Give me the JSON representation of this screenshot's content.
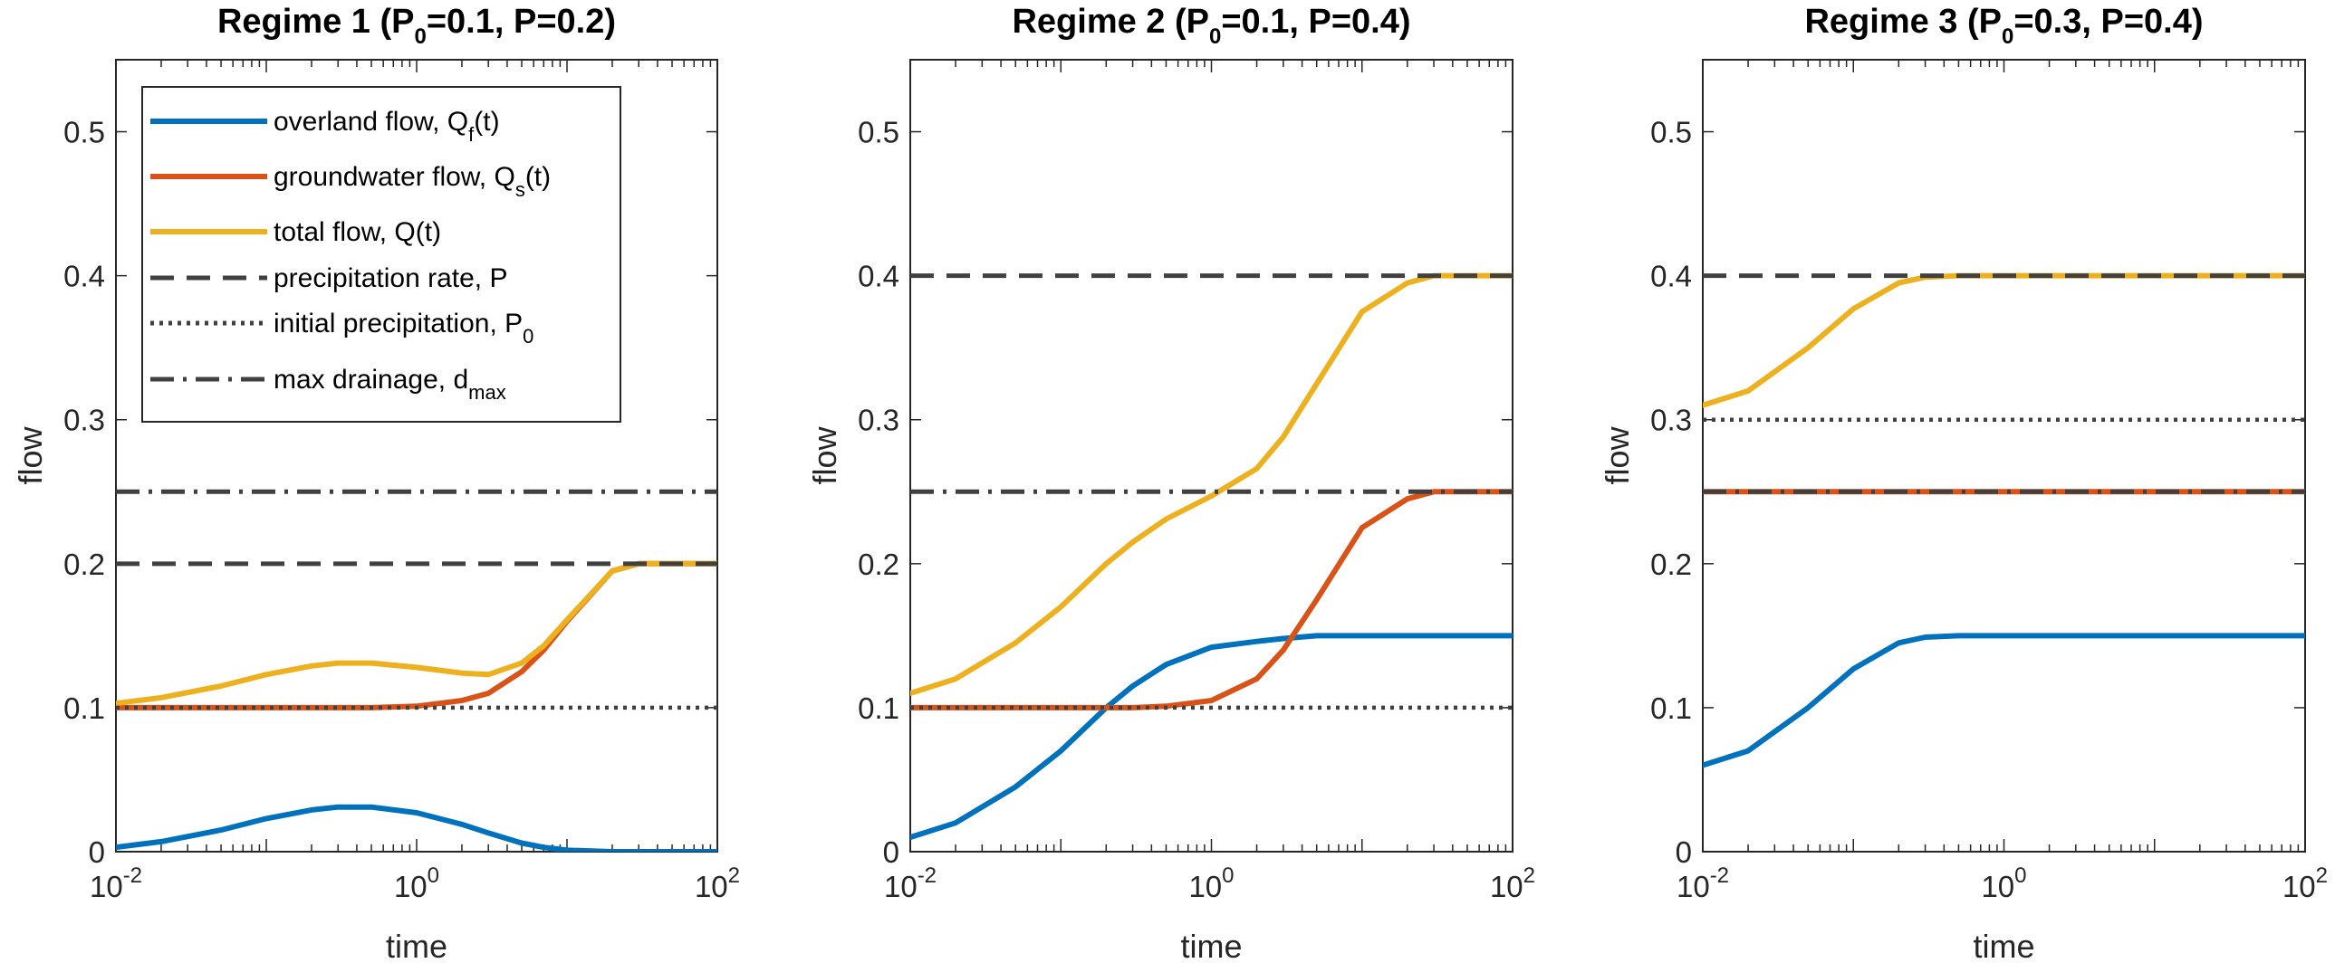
{
  "chart_data": [
    {
      "type": "line",
      "title": "Regime 1 (P",
      "title_sub": "0",
      "title_rest": "=0.1, P=0.2)",
      "xlabel": "time",
      "ylabel": "flow",
      "xscale": "log",
      "xlim": [
        0.01,
        100
      ],
      "ylim": [
        0,
        0.55
      ],
      "xticks": [
        {
          "base": "10",
          "exp": "-2"
        },
        {
          "base": "10",
          "exp": "0"
        },
        {
          "base": "10",
          "exp": "2"
        }
      ],
      "yticks": [
        "0",
        "0.1",
        "0.2",
        "0.3",
        "0.4",
        "0.5"
      ],
      "grid": false,
      "legend": "top-left",
      "reference_lines": {
        "precipitation": 0.2,
        "initial_precipitation": 0.1,
        "max_drainage": 0.25
      },
      "x": [
        0.01,
        0.02,
        0.05,
        0.1,
        0.2,
        0.3,
        0.5,
        1,
        2,
        3,
        5,
        7,
        10,
        20,
        30,
        50,
        100
      ],
      "series": [
        {
          "key": "overland",
          "values": [
            0.003,
            0.007,
            0.015,
            0.023,
            0.029,
            0.031,
            0.031,
            0.027,
            0.019,
            0.013,
            0.006,
            0.003,
            0.001,
            0,
            0,
            0,
            0
          ]
        },
        {
          "key": "groundwater",
          "values": [
            0.1,
            0.1,
            0.1,
            0.1,
            0.1,
            0.1,
            0.1,
            0.101,
            0.105,
            0.11,
            0.125,
            0.14,
            0.16,
            0.195,
            0.2,
            0.2,
            0.2
          ]
        },
        {
          "key": "total",
          "values": [
            0.103,
            0.107,
            0.115,
            0.123,
            0.129,
            0.131,
            0.131,
            0.128,
            0.124,
            0.123,
            0.131,
            0.143,
            0.161,
            0.195,
            0.2,
            0.2,
            0.2
          ]
        }
      ]
    },
    {
      "type": "line",
      "title": "Regime 2 (P",
      "title_sub": "0",
      "title_rest": "=0.1, P=0.4)",
      "xlabel": "time",
      "ylabel": "flow",
      "xscale": "log",
      "xlim": [
        0.01,
        100
      ],
      "ylim": [
        0,
        0.55
      ],
      "xticks": [
        {
          "base": "10",
          "exp": "-2"
        },
        {
          "base": "10",
          "exp": "0"
        },
        {
          "base": "10",
          "exp": "2"
        }
      ],
      "yticks": [
        "0",
        "0.1",
        "0.2",
        "0.3",
        "0.4",
        "0.5"
      ],
      "grid": false,
      "reference_lines": {
        "precipitation": 0.4,
        "initial_precipitation": 0.1,
        "max_drainage": 0.25
      },
      "x": [
        0.01,
        0.02,
        0.05,
        0.1,
        0.2,
        0.3,
        0.5,
        1,
        2,
        3,
        5,
        10,
        20,
        30,
        50,
        100
      ],
      "series": [
        {
          "key": "overland",
          "values": [
            0.01,
            0.02,
            0.045,
            0.07,
            0.1,
            0.115,
            0.13,
            0.142,
            0.146,
            0.148,
            0.15,
            0.15,
            0.15,
            0.15,
            0.15,
            0.15
          ]
        },
        {
          "key": "groundwater",
          "values": [
            0.1,
            0.1,
            0.1,
            0.1,
            0.1,
            0.1,
            0.101,
            0.105,
            0.12,
            0.14,
            0.175,
            0.225,
            0.245,
            0.25,
            0.25,
            0.25
          ]
        },
        {
          "key": "total",
          "values": [
            0.11,
            0.12,
            0.145,
            0.17,
            0.2,
            0.215,
            0.231,
            0.247,
            0.266,
            0.288,
            0.325,
            0.375,
            0.395,
            0.4,
            0.4,
            0.4
          ]
        }
      ]
    },
    {
      "type": "line",
      "title": "Regime 3 (P",
      "title_sub": "0",
      "title_rest": "=0.3, P=0.4)",
      "xlabel": "time",
      "ylabel": "flow",
      "xscale": "log",
      "xlim": [
        0.01,
        100
      ],
      "ylim": [
        0,
        0.55
      ],
      "xticks": [
        {
          "base": "10",
          "exp": "-2"
        },
        {
          "base": "10",
          "exp": "0"
        },
        {
          "base": "10",
          "exp": "2"
        }
      ],
      "yticks": [
        "0",
        "0.1",
        "0.2",
        "0.3",
        "0.4",
        "0.5"
      ],
      "grid": false,
      "reference_lines": {
        "precipitation": 0.4,
        "initial_precipitation": 0.3,
        "max_drainage": 0.25
      },
      "x": [
        0.01,
        0.02,
        0.05,
        0.1,
        0.2,
        0.3,
        0.5,
        1,
        2,
        5,
        10,
        100
      ],
      "series": [
        {
          "key": "overland",
          "values": [
            0.06,
            0.07,
            0.1,
            0.127,
            0.145,
            0.149,
            0.15,
            0.15,
            0.15,
            0.15,
            0.15,
            0.15
          ]
        },
        {
          "key": "groundwater",
          "values": [
            0.25,
            0.25,
            0.25,
            0.25,
            0.25,
            0.25,
            0.25,
            0.25,
            0.25,
            0.25,
            0.25,
            0.25
          ]
        },
        {
          "key": "total",
          "values": [
            0.31,
            0.32,
            0.35,
            0.377,
            0.395,
            0.399,
            0.4,
            0.4,
            0.4,
            0.4,
            0.4,
            0.4
          ]
        }
      ]
    }
  ],
  "legend": {
    "items": [
      {
        "key": "overland",
        "label": "overland flow, Q",
        "sub": "f",
        "tail": "(t)",
        "style": "solid",
        "color": "#0072BD"
      },
      {
        "key": "groundwater",
        "label": "groundwater flow, Q",
        "sub": "s",
        "tail": "(t)",
        "style": "solid",
        "color": "#D95319"
      },
      {
        "key": "total",
        "label": "total flow, Q(t)",
        "sub": "",
        "tail": "",
        "style": "solid",
        "color": "#EDB120"
      },
      {
        "key": "precipitation",
        "label": "precipitation rate, P",
        "sub": "",
        "tail": "",
        "style": "dashed",
        "color": "#404040"
      },
      {
        "key": "initial_precipitation",
        "label": "initial precipitation, P",
        "sub": "0",
        "tail": "",
        "style": "dotted",
        "color": "#404040"
      },
      {
        "key": "max_drainage",
        "label": "max drainage, d",
        "sub": "max",
        "tail": "",
        "style": "dashdot",
        "color": "#404040"
      }
    ]
  },
  "colors": {
    "overland": "#0072BD",
    "groundwater": "#D95319",
    "total": "#EDB120",
    "reference": "#404040",
    "axis": "#262626"
  }
}
